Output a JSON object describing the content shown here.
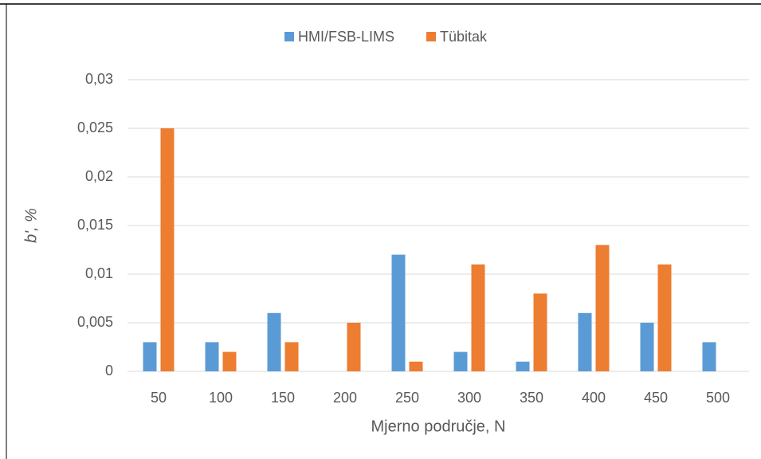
{
  "chart_data": {
    "type": "bar",
    "xlabel": "Mjerno područje, N",
    "ylabel": "b', %",
    "categories": [
      "50",
      "100",
      "150",
      "200",
      "250",
      "300",
      "350",
      "400",
      "450",
      "500"
    ],
    "series": [
      {
        "name": "HMI/FSB-LIMS",
        "color": "#5b9bd5",
        "values": [
          0.003,
          0.003,
          0.006,
          null,
          0.012,
          0.002,
          0.001,
          0.006,
          0.005,
          0.003
        ]
      },
      {
        "name": "Tübitak",
        "color": "#ed7d31",
        "values": [
          0.025,
          0.002,
          0.003,
          0.005,
          0.001,
          0.011,
          0.008,
          0.013,
          0.011,
          null
        ]
      }
    ],
    "ylim": [
      0,
      0.03
    ],
    "yticks": [
      0,
      {
        "value": 0.005,
        "label": "0,005"
      },
      {
        "value": 0.01,
        "label": "0,01"
      },
      {
        "value": 0.015,
        "label": "0,015"
      },
      {
        "value": 0.02,
        "label": "0,02"
      },
      {
        "value": 0.025,
        "label": "0,025"
      },
      {
        "value": 0.03,
        "label": "0,03"
      }
    ],
    "grid": true,
    "legend": "top"
  }
}
